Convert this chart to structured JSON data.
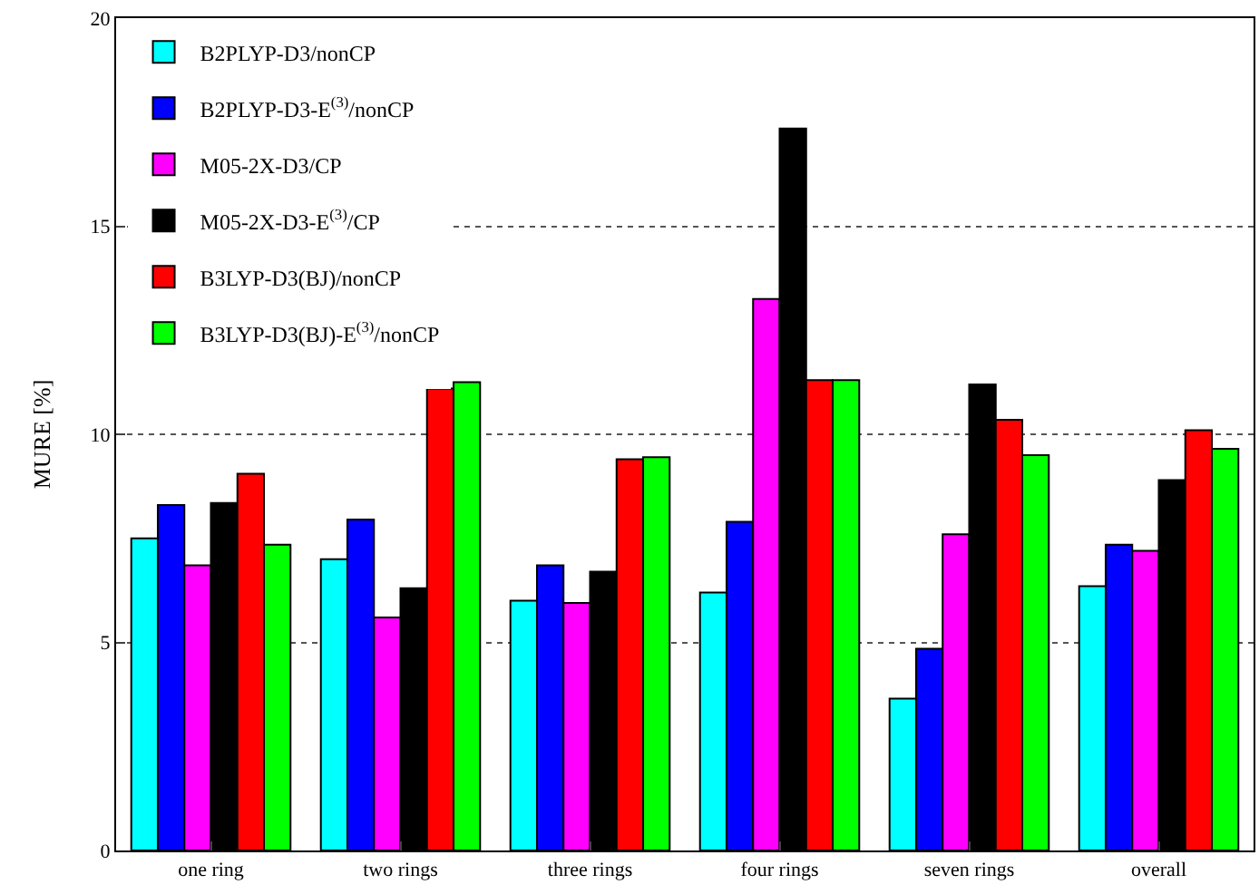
{
  "chart_data": {
    "type": "bar",
    "ylabel": "MURE [%]",
    "categories": [
      "one ring",
      "two rings",
      "three rings",
      "four rings",
      "seven rings",
      "overall"
    ],
    "series": [
      {
        "name": "B2PLYP-D3/nonCP",
        "color": "#00ffff",
        "values": [
          7.5,
          7.0,
          6.0,
          6.2,
          3.65,
          6.35
        ]
      },
      {
        "name": "B2PLYP-D3-E$^{(3)}$/nonCP",
        "color": "#0000ff",
        "values": [
          8.3,
          7.95,
          6.85,
          7.9,
          4.85,
          7.35
        ]
      },
      {
        "name": "M05-2X-D3/CP",
        "color": "#ff00ff",
        "values": [
          6.85,
          5.6,
          5.95,
          13.25,
          7.6,
          7.2
        ]
      },
      {
        "name": "M05-2X-D3-E$^{(3)}$/CP",
        "color": "#000000",
        "values": [
          8.35,
          6.3,
          6.7,
          17.35,
          11.2,
          8.9
        ]
      },
      {
        "name": "B3LYP-D3(BJ)/nonCP",
        "color": "#ff0000",
        "values": [
          9.05,
          11.1,
          9.4,
          11.3,
          10.35,
          10.1
        ]
      },
      {
        "name": "B3LYP-D3(BJ)-E$^{(3)}$/nonCP",
        "color": "#00ff00",
        "values": [
          7.35,
          11.25,
          9.45,
          11.3,
          9.5,
          9.65
        ]
      }
    ],
    "ylim": [
      0,
      20
    ],
    "yticks": [
      0,
      5,
      10,
      15,
      20
    ],
    "grid": "y",
    "legend": "top left"
  }
}
